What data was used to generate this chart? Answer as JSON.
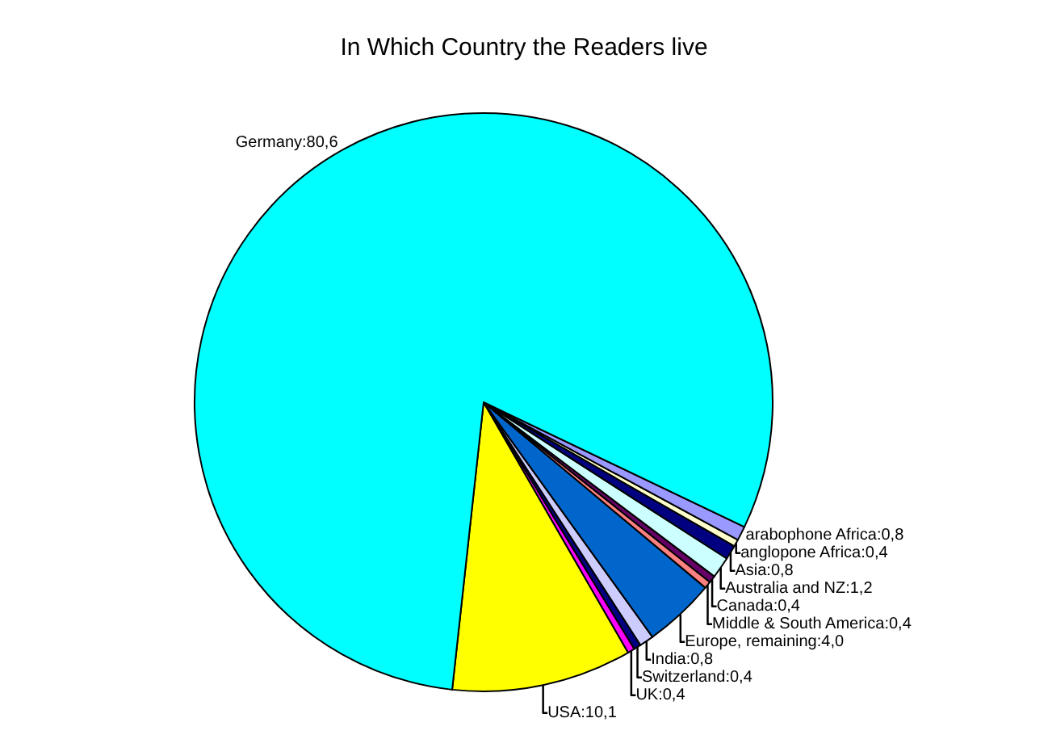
{
  "chart_data": {
    "type": "pie",
    "title": "In Which Country the Readers live",
    "categories": [
      "USA",
      "UK",
      "Switzerland",
      "India",
      "Europe, remaining",
      "Middle & South America",
      "Canada",
      "Australia and NZ",
      "Asia",
      "anglopone Africa",
      "arabophone Africa",
      "Germany"
    ],
    "values": [
      10.1,
      0.4,
      0.4,
      0.8,
      4.0,
      0.4,
      0.4,
      1.2,
      0.8,
      0.4,
      0.8,
      80.6
    ],
    "value_labels": [
      "10,1",
      "0,4",
      "0,4",
      "0,8",
      "4,0",
      "0,4",
      "0,4",
      "1,2",
      "0,8",
      "0,4",
      "0,8",
      "80,6"
    ],
    "colors": [
      "#ffff00",
      "#ff00ff",
      "#000080",
      "#ccccff",
      "#0066cc",
      "#ff8080",
      "#660066",
      "#ccffff",
      "#000080",
      "#ffffcc",
      "#9999ff",
      "#00ffff"
    ],
    "legend": false
  }
}
